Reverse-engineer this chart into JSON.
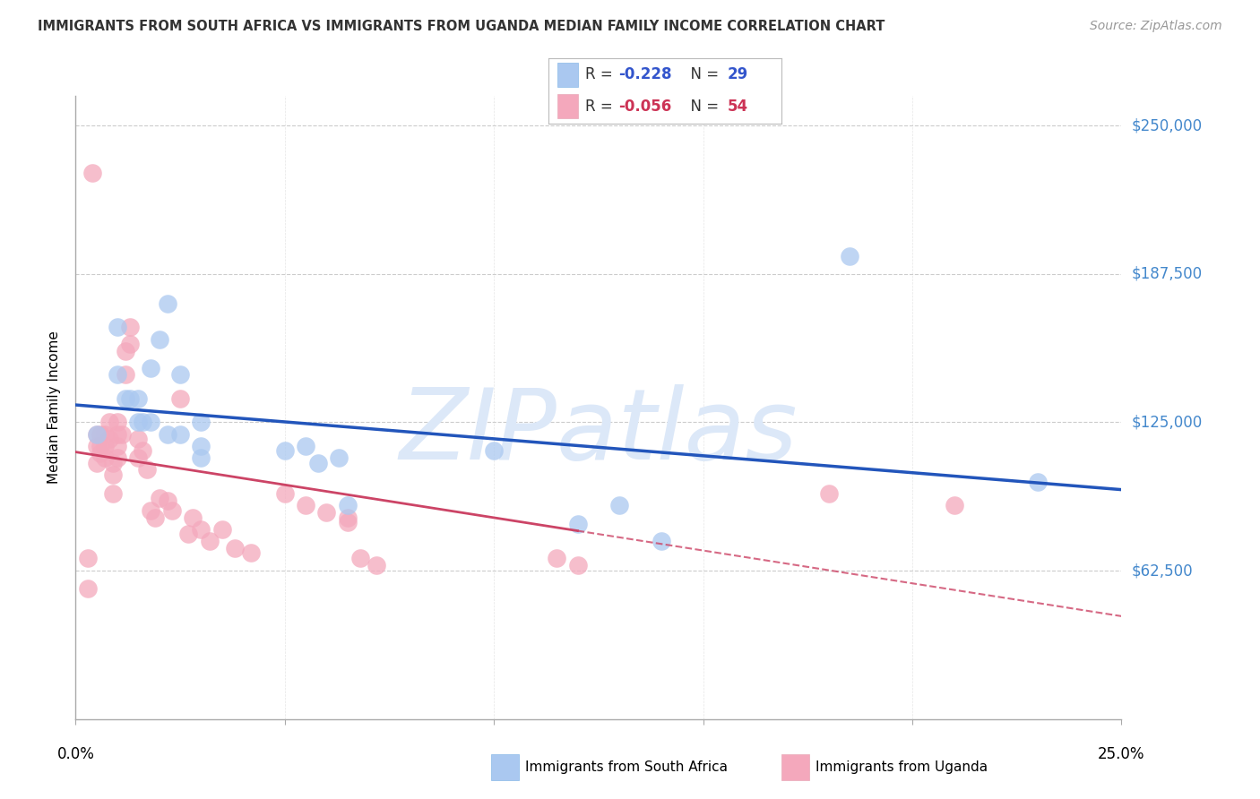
{
  "title": "IMMIGRANTS FROM SOUTH AFRICA VS IMMIGRANTS FROM UGANDA MEDIAN FAMILY INCOME CORRELATION CHART",
  "source": "Source: ZipAtlas.com",
  "ylabel": "Median Family Income",
  "ytick_values": [
    0,
    62500,
    125000,
    187500,
    250000
  ],
  "ytick_labels": [
    "",
    "$62,500",
    "$125,000",
    "$187,500",
    "$250,000"
  ],
  "xlim": [
    0.0,
    0.25
  ],
  "ylim": [
    0,
    262500
  ],
  "south_africa_x": [
    0.005,
    0.01,
    0.01,
    0.012,
    0.013,
    0.015,
    0.015,
    0.016,
    0.018,
    0.018,
    0.02,
    0.022,
    0.022,
    0.025,
    0.025,
    0.03,
    0.03,
    0.03,
    0.05,
    0.055,
    0.058,
    0.063,
    0.065,
    0.1,
    0.12,
    0.13,
    0.14,
    0.185,
    0.23
  ],
  "south_africa_y": [
    120000,
    165000,
    145000,
    135000,
    135000,
    135000,
    125000,
    125000,
    125000,
    148000,
    160000,
    120000,
    175000,
    120000,
    145000,
    110000,
    115000,
    125000,
    113000,
    115000,
    108000,
    110000,
    90000,
    113000,
    82000,
    90000,
    75000,
    195000,
    100000
  ],
  "uganda_x": [
    0.003,
    0.003,
    0.004,
    0.005,
    0.005,
    0.005,
    0.006,
    0.006,
    0.006,
    0.007,
    0.007,
    0.007,
    0.008,
    0.008,
    0.009,
    0.009,
    0.009,
    0.01,
    0.01,
    0.01,
    0.01,
    0.011,
    0.012,
    0.012,
    0.013,
    0.013,
    0.015,
    0.015,
    0.016,
    0.017,
    0.018,
    0.019,
    0.02,
    0.022,
    0.023,
    0.025,
    0.027,
    0.028,
    0.03,
    0.032,
    0.035,
    0.038,
    0.042,
    0.05,
    0.055,
    0.06,
    0.065,
    0.065,
    0.068,
    0.072,
    0.115,
    0.12,
    0.18,
    0.21
  ],
  "uganda_y": [
    55000,
    68000,
    230000,
    120000,
    115000,
    108000,
    120000,
    115000,
    112000,
    120000,
    115000,
    110000,
    125000,
    118000,
    108000,
    103000,
    95000,
    125000,
    120000,
    115000,
    110000,
    120000,
    155000,
    145000,
    165000,
    158000,
    118000,
    110000,
    113000,
    105000,
    88000,
    85000,
    93000,
    92000,
    88000,
    135000,
    78000,
    85000,
    80000,
    75000,
    80000,
    72000,
    70000,
    95000,
    90000,
    87000,
    85000,
    83000,
    68000,
    65000,
    68000,
    65000,
    95000,
    90000
  ],
  "south_africa_color": "#aac8f0",
  "uganda_color": "#f4a8bc",
  "south_africa_line_color": "#2255bb",
  "uganda_line_color": "#cc4466",
  "legend_sa_color": "#aac8f0",
  "legend_ug_color": "#f4a8bc",
  "watermark_text": "ZIPatlas",
  "watermark_color": "#dce8f8",
  "background_color": "#ffffff",
  "grid_color": "#cccccc",
  "right_label_color": "#4488cc",
  "title_color": "#333333",
  "source_color": "#999999"
}
